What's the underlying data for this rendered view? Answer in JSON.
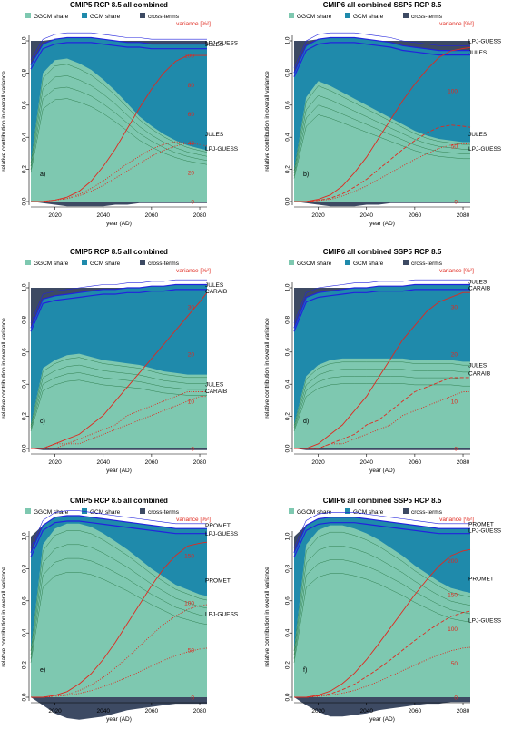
{
  "colors": {
    "ggcm": "#7ec8b0",
    "gcm": "#1f8aab",
    "cross": "#3d4a63",
    "variance": "#e0291f",
    "envelope": "#2222dd",
    "ensemble_line": "#1e6e3a",
    "axis": "#000000"
  },
  "legend_labels": {
    "ggcm": "GGCM share",
    "gcm": "GCM share",
    "cross": "cross-terms"
  },
  "variance_axis_label": "variance [%²]",
  "chart_data": [
    {
      "type": "area",
      "panel_letter": "a)",
      "title": "CMIP5 RCP 8.5 all combined",
      "xlabel": "year (AD)",
      "ylabel": "relative contribution in overall variance",
      "x_ticks": [
        2020,
        2040,
        2060,
        2080
      ],
      "y_ticks": [
        "0.0",
        "0.2",
        "0.4",
        "0.6",
        "0.8",
        "1.0"
      ],
      "ylim": [
        0,
        1
      ],
      "xlim": [
        2010,
        2083
      ],
      "var_ticks": [
        0,
        20,
        40,
        60,
        80,
        100
      ],
      "var_max": 110,
      "series_names": [
        "GGCM share",
        "GCM share",
        "cross-terms"
      ],
      "x": [
        2010,
        2015,
        2020,
        2025,
        2030,
        2035,
        2040,
        2045,
        2050,
        2055,
        2060,
        2065,
        2070,
        2075,
        2080,
        2083
      ],
      "ggcm_upper": [
        0.25,
        0.8,
        0.88,
        0.89,
        0.86,
        0.82,
        0.76,
        0.69,
        0.61,
        0.53,
        0.47,
        0.42,
        0.38,
        0.35,
        0.33,
        0.32
      ],
      "gcm_upper": [
        0.85,
        0.98,
        1.01,
        1.02,
        1.02,
        1.02,
        1.01,
        1.0,
        0.99,
        0.99,
        0.98,
        0.98,
        0.98,
        0.98,
        0.98,
        0.98
      ],
      "cross_lower": [
        0.0,
        -0.01,
        -0.02,
        -0.03,
        -0.03,
        -0.03,
        -0.03,
        -0.02,
        -0.02,
        -0.01,
        -0.01,
        -0.01,
        -0.01,
        -0.01,
        -0.01,
        -0.01
      ],
      "variance_solid": [
        0,
        0,
        1,
        3,
        7,
        14,
        24,
        36,
        50,
        64,
        77,
        88,
        96,
        100,
        100,
        100
      ],
      "variance_dashed": [],
      "variance_dotted": [
        0,
        0,
        1,
        2,
        5,
        9,
        14,
        20,
        26,
        31,
        36,
        39,
        41,
        40,
        39,
        38
      ],
      "variance_dotted2": [
        0,
        0,
        1,
        2,
        4,
        7,
        11,
        16,
        21,
        26,
        31,
        35,
        38,
        40,
        40,
        40
      ],
      "right_labels": [
        {
          "text": "LPJ-GUESS",
          "y": 0.99
        },
        {
          "text": "JULES",
          "y": 0.98
        },
        {
          "text": "JULES",
          "y": 0.42
        },
        {
          "text": "LPJ-GUESS",
          "y": 0.33
        }
      ]
    },
    {
      "type": "area",
      "panel_letter": "b)",
      "title": "CMIP6 all combined SSP5 RCP 8.5",
      "xlabel": "year (AD)",
      "ylabel": "relative contribution in overall variance",
      "x_ticks": [
        2020,
        2040,
        2060,
        2080
      ],
      "y_ticks": [
        "0.0",
        "0.2",
        "0.4",
        "0.6",
        "0.8",
        "1.0"
      ],
      "ylim": [
        0,
        1
      ],
      "xlim": [
        2010,
        2083
      ],
      "var_ticks": [
        0,
        50,
        100
      ],
      "var_max": 145,
      "series_names": [
        "GGCM share",
        "GCM share",
        "cross-terms"
      ],
      "x": [
        2010,
        2015,
        2020,
        2025,
        2030,
        2035,
        2040,
        2045,
        2050,
        2055,
        2060,
        2065,
        2070,
        2075,
        2080,
        2083
      ],
      "ggcm_upper": [
        0.2,
        0.65,
        0.75,
        0.72,
        0.68,
        0.64,
        0.6,
        0.56,
        0.52,
        0.48,
        0.44,
        0.41,
        0.39,
        0.38,
        0.37,
        0.37
      ],
      "gcm_upper": [
        0.8,
        0.97,
        1.01,
        1.02,
        1.02,
        1.02,
        1.01,
        1.0,
        0.99,
        0.97,
        0.96,
        0.95,
        0.94,
        0.94,
        0.94,
        0.94
      ],
      "cross_lower": [
        0.0,
        -0.01,
        -0.02,
        -0.03,
        -0.03,
        -0.03,
        -0.02,
        -0.02,
        -0.01,
        -0.01,
        -0.01,
        -0.01,
        -0.01,
        -0.01,
        -0.01,
        -0.01
      ],
      "variance_solid": [
        0,
        0,
        2,
        6,
        14,
        26,
        40,
        57,
        74,
        91,
        106,
        119,
        130,
        136,
        138,
        139
      ],
      "variance_dashed": [
        0,
        0,
        1,
        3,
        7,
        13,
        20,
        29,
        38,
        47,
        55,
        62,
        67,
        69,
        68,
        67
      ],
      "variance_dotted": [
        0,
        0,
        1,
        2,
        5,
        9,
        14,
        20,
        26,
        32,
        38,
        43,
        48,
        51,
        52,
        52
      ],
      "variance_dotted2": [],
      "right_labels": [
        {
          "text": "LPJ-GUESS",
          "y": 1.0
        },
        {
          "text": "JULES",
          "y": 0.93
        },
        {
          "text": "JULES",
          "y": 0.42
        },
        {
          "text": "LPJ-GUESS",
          "y": 0.33
        }
      ]
    },
    {
      "type": "area",
      "panel_letter": "c)",
      "title": "CMIP5 RCP 8.5 all combined",
      "xlabel": "year (AD)",
      "ylabel": "relative contribution in overall variance",
      "x_ticks": [
        2020,
        2040,
        2060,
        2080
      ],
      "y_ticks": [
        "0.0",
        "0.2",
        "0.4",
        "0.6",
        "0.8",
        "1.0"
      ],
      "ylim": [
        0,
        1
      ],
      "xlim": [
        2010,
        2083
      ],
      "var_ticks": [
        0,
        10,
        20,
        30
      ],
      "var_max": 34,
      "series_names": [
        "GGCM share",
        "GCM share",
        "cross-terms"
      ],
      "x": [
        2010,
        2015,
        2020,
        2025,
        2030,
        2035,
        2040,
        2045,
        2050,
        2055,
        2060,
        2065,
        2070,
        2075,
        2080,
        2083
      ],
      "ggcm_upper": [
        0.15,
        0.5,
        0.55,
        0.58,
        0.59,
        0.57,
        0.55,
        0.54,
        0.53,
        0.52,
        0.5,
        0.48,
        0.47,
        0.46,
        0.46,
        0.46
      ],
      "gcm_upper": [
        0.75,
        0.93,
        0.95,
        0.96,
        0.97,
        0.98,
        0.99,
        0.99,
        1.0,
        1.0,
        1.01,
        1.01,
        1.02,
        1.02,
        1.02,
        1.02
      ],
      "cross_lower": [
        0.0,
        -0.01,
        -0.01,
        -0.01,
        -0.01,
        -0.01,
        -0.01,
        -0.01,
        -0.01,
        -0.01,
        -0.01,
        -0.01,
        -0.01,
        -0.01,
        -0.01,
        -0.01
      ],
      "variance_solid": [
        0,
        0,
        1,
        2,
        3,
        5,
        7,
        10,
        13,
        16,
        19,
        22,
        25,
        28,
        31,
        33
      ],
      "variance_dashed": [],
      "variance_dotted": [
        0,
        0,
        0,
        1,
        1,
        2,
        3,
        4,
        5,
        6,
        7,
        8,
        9,
        10,
        11,
        11
      ],
      "variance_dotted2": [
        0,
        0,
        1,
        1,
        2,
        3,
        4,
        5,
        7,
        8,
        9,
        10,
        11,
        12,
        12,
        12
      ],
      "right_labels": [
        {
          "text": "JULES",
          "y": 1.02
        },
        {
          "text": "CARAIB",
          "y": 0.98
        },
        {
          "text": "JULES",
          "y": 0.4
        },
        {
          "text": "CARAIB",
          "y": 0.36
        }
      ]
    },
    {
      "type": "area",
      "panel_letter": "d)",
      "title": "CMIP6 all combined SSP5 RCP 8.5",
      "xlabel": "year (AD)",
      "ylabel": "relative contribution in overall variance",
      "x_ticks": [
        2020,
        2040,
        2060,
        2080
      ],
      "y_ticks": [
        "0.0",
        "0.2",
        "0.4",
        "0.6",
        "0.8",
        "1.0"
      ],
      "ylim": [
        0,
        1
      ],
      "xlim": [
        2010,
        2083
      ],
      "var_ticks": [
        0,
        10,
        20,
        30
      ],
      "var_max": 34,
      "series_names": [
        "GGCM share",
        "GCM share",
        "cross-terms"
      ],
      "x": [
        2010,
        2015,
        2020,
        2025,
        2030,
        2035,
        2040,
        2045,
        2050,
        2055,
        2060,
        2065,
        2070,
        2075,
        2080,
        2083
      ],
      "ggcm_upper": [
        0.15,
        0.45,
        0.52,
        0.55,
        0.56,
        0.56,
        0.56,
        0.56,
        0.56,
        0.56,
        0.55,
        0.55,
        0.55,
        0.55,
        0.54,
        0.54
      ],
      "gcm_upper": [
        0.75,
        0.94,
        0.97,
        0.98,
        0.99,
        1.0,
        1.0,
        1.01,
        1.01,
        1.01,
        1.02,
        1.02,
        1.02,
        1.02,
        1.02,
        1.02
      ],
      "cross_lower": [
        0.0,
        -0.01,
        -0.01,
        -0.01,
        -0.01,
        -0.01,
        -0.01,
        -0.01,
        -0.01,
        -0.01,
        -0.01,
        -0.01,
        -0.01,
        -0.01,
        -0.01,
        -0.01
      ],
      "variance_solid": [
        0,
        0,
        1,
        3,
        5,
        8,
        11,
        15,
        19,
        23,
        26,
        29,
        31,
        32,
        33,
        33
      ],
      "variance_dashed": [
        0,
        0,
        0,
        1,
        2,
        3,
        5,
        6,
        8,
        10,
        12,
        13,
        14,
        15,
        15,
        15
      ],
      "variance_dotted": [
        0,
        0,
        0,
        1,
        1,
        2,
        3,
        4,
        5,
        7,
        8,
        9,
        10,
        11,
        12,
        12
      ],
      "variance_dotted2": [],
      "right_labels": [
        {
          "text": "JULES",
          "y": 1.04
        },
        {
          "text": "CARAIB",
          "y": 1.0
        },
        {
          "text": "JULES",
          "y": 0.52
        },
        {
          "text": "CARAIB",
          "y": 0.47
        }
      ]
    },
    {
      "type": "area",
      "panel_letter": "e)",
      "title": "CMIP5 RCP 8.5 all combined",
      "xlabel": "year (AD)",
      "ylabel": "relative contribution in overall variance",
      "x_ticks": [
        2020,
        2040,
        2060,
        2080
      ],
      "y_ticks": [
        "0.0",
        "0.2",
        "0.4",
        "0.6",
        "0.8",
        "1.0"
      ],
      "ylim": [
        0,
        1
      ],
      "xlim": [
        2010,
        2083
      ],
      "var_ticks": [
        0,
        50,
        100,
        150
      ],
      "var_max": 170,
      "series_names": [
        "GGCM share",
        "GCM share",
        "cross-terms"
      ],
      "x": [
        2010,
        2015,
        2020,
        2025,
        2030,
        2035,
        2040,
        2045,
        2050,
        2055,
        2060,
        2065,
        2070,
        2075,
        2080,
        2083
      ],
      "ggcm_upper": [
        0.3,
        0.95,
        1.05,
        1.08,
        1.08,
        1.06,
        1.02,
        0.97,
        0.92,
        0.86,
        0.8,
        0.75,
        0.7,
        0.67,
        0.64,
        0.63
      ],
      "gcm_upper": [
        0.9,
        1.07,
        1.12,
        1.13,
        1.13,
        1.12,
        1.11,
        1.1,
        1.09,
        1.08,
        1.07,
        1.06,
        1.05,
        1.05,
        1.05,
        1.05
      ],
      "cross_lower": [
        0.0,
        -0.05,
        -0.1,
        -0.13,
        -0.14,
        -0.13,
        -0.12,
        -0.1,
        -0.08,
        -0.07,
        -0.06,
        -0.05,
        -0.04,
        -0.04,
        -0.04,
        -0.04
      ],
      "variance_solid": [
        0,
        0,
        2,
        6,
        14,
        25,
        40,
        58,
        78,
        98,
        118,
        136,
        150,
        160,
        163,
        164
      ],
      "variance_dashed": [],
      "variance_dotted": [
        0,
        0,
        1,
        3,
        7,
        13,
        21,
        31,
        42,
        54,
        66,
        77,
        86,
        93,
        97,
        98
      ],
      "variance_dotted2": [
        0,
        0,
        1,
        2,
        4,
        7,
        11,
        16,
        21,
        27,
        33,
        39,
        44,
        48,
        51,
        52
      ],
      "right_labels": [
        {
          "text": "PROMET",
          "y": 1.07
        },
        {
          "text": "LPJ-GUESS",
          "y": 1.02
        },
        {
          "text": "PROMET",
          "y": 0.73
        },
        {
          "text": "LPJ-GUESS",
          "y": 0.52
        }
      ]
    },
    {
      "type": "area",
      "panel_letter": "f)",
      "title": "CMIP6 all combined SSP5 RCP 8.5",
      "xlabel": "year (AD)",
      "ylabel": "relative contribution in overall variance",
      "x_ticks": [
        2020,
        2040,
        2060,
        2080
      ],
      "y_ticks": [
        "0.0",
        "0.2",
        "0.4",
        "0.6",
        "0.8",
        "1.0"
      ],
      "ylim": [
        0,
        1
      ],
      "xlim": [
        2010,
        2083
      ],
      "var_ticks": [
        0,
        50,
        100,
        150,
        200
      ],
      "var_max": 235,
      "series_names": [
        "GGCM share",
        "GCM share",
        "cross-terms"
      ],
      "x": [
        2010,
        2015,
        2020,
        2025,
        2030,
        2035,
        2040,
        2045,
        2050,
        2055,
        2060,
        2065,
        2070,
        2075,
        2080,
        2083
      ],
      "ggcm_upper": [
        0.3,
        0.95,
        1.04,
        1.07,
        1.07,
        1.05,
        1.02,
        0.98,
        0.93,
        0.88,
        0.82,
        0.77,
        0.72,
        0.68,
        0.66,
        0.65
      ],
      "gcm_upper": [
        0.9,
        1.07,
        1.11,
        1.12,
        1.12,
        1.12,
        1.11,
        1.1,
        1.09,
        1.08,
        1.07,
        1.06,
        1.05,
        1.05,
        1.05,
        1.05
      ],
      "cross_lower": [
        0.0,
        -0.05,
        -0.09,
        -0.12,
        -0.12,
        -0.11,
        -0.1,
        -0.08,
        -0.07,
        -0.06,
        -0.05,
        -0.04,
        -0.04,
        -0.03,
        -0.03,
        -0.03
      ],
      "variance_solid": [
        0,
        0,
        3,
        9,
        20,
        35,
        55,
        78,
        102,
        126,
        150,
        172,
        192,
        207,
        214,
        216
      ],
      "variance_dashed": [
        0,
        0,
        2,
        5,
        11,
        19,
        30,
        42,
        55,
        69,
        83,
        96,
        108,
        118,
        124,
        126
      ],
      "variance_dotted": [
        0,
        0,
        1,
        3,
        6,
        10,
        16,
        23,
        31,
        39,
        47,
        55,
        62,
        68,
        72,
        73
      ],
      "variance_dotted2": [],
      "right_labels": [
        {
          "text": "PROMET",
          "y": 1.08
        },
        {
          "text": "LPJ-GUESS",
          "y": 1.04
        },
        {
          "text": "PROMET",
          "y": 0.74
        },
        {
          "text": "LPJ-GUESS",
          "y": 0.48
        }
      ]
    }
  ]
}
